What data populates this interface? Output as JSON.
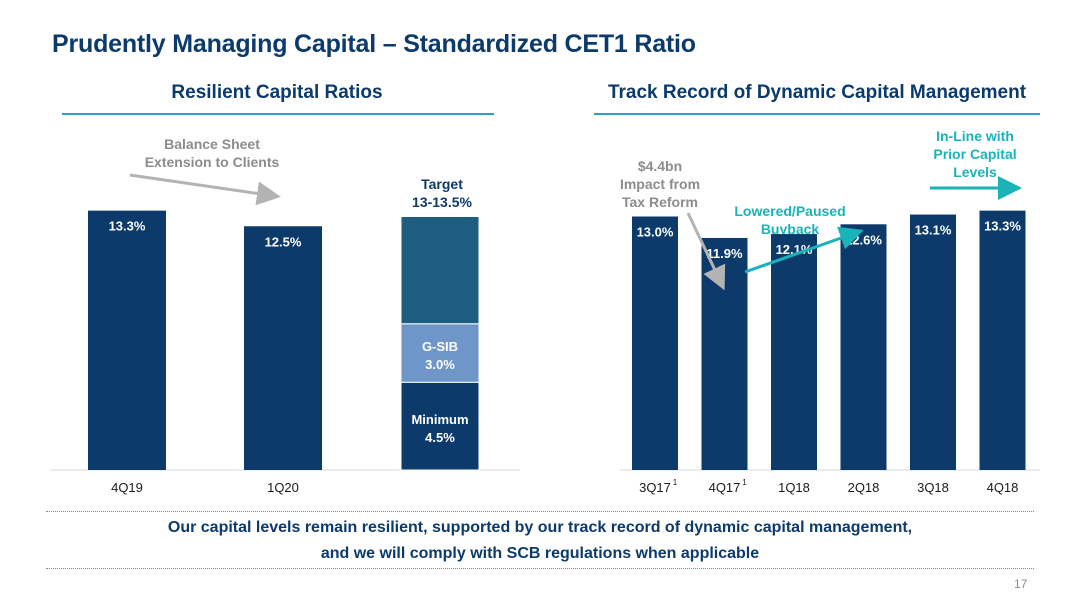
{
  "title": "Prudently Managing Capital – Standardized CET1 Ratio",
  "left_section_title": "Resilient Capital Ratios",
  "right_section_title": "Track Record of Dynamic Capital Management",
  "annotations": {
    "balance_sheet": [
      "Balance Sheet",
      "Extension to Clients"
    ],
    "target": [
      "Target",
      "13-13.5%"
    ],
    "tax_reform": [
      "$4.4bn",
      "Impact from",
      "Tax Reform"
    ],
    "buyback": [
      "Lowered/Paused",
      "Buyback"
    ],
    "inline": [
      "In-Line with",
      "Prior Capital",
      "Levels"
    ]
  },
  "footer": {
    "line1": "Our capital levels remain resilient, supported by our track record of dynamic capital management,",
    "line2": "and we will comply with SCB regulations when applicable"
  },
  "page_number": "17",
  "colors": {
    "navy": "#0b3a6b",
    "teal_dark": "#1d5e80",
    "gsib": "#6e96c8",
    "accent_teal": "#19b3b8",
    "gray_annot": "#8c8c8c"
  },
  "chart_data": [
    {
      "type": "bar",
      "categories": [
        "4Q19",
        "1Q20"
      ],
      "values": [
        13.3,
        12.5
      ],
      "labels": [
        "13.3%",
        "12.5%"
      ],
      "stacked_requirement": {
        "components": [
          {
            "name": "Minimum",
            "value": 4.5,
            "label": "Minimum",
            "value_label": "4.5%"
          },
          {
            "name": "G-SIB",
            "value": 3.0,
            "label": "G-SIB",
            "value_label": "3.0%"
          },
          {
            "name": "Target buffer",
            "value": 5.5
          }
        ]
      },
      "ylim": [
        0,
        14
      ]
    },
    {
      "type": "bar",
      "categories": [
        "3Q17",
        "4Q17",
        "1Q18",
        "2Q18",
        "3Q18",
        "4Q18"
      ],
      "category_superscripts": [
        "1",
        "1",
        "",
        "",
        "",
        ""
      ],
      "values": [
        13.0,
        11.9,
        12.1,
        12.6,
        13.1,
        13.3
      ],
      "labels": [
        "13.0%",
        "11.9%",
        "12.1%",
        "12.6%",
        "13.1%",
        "13.3%"
      ],
      "ylim": [
        0,
        14
      ]
    }
  ]
}
